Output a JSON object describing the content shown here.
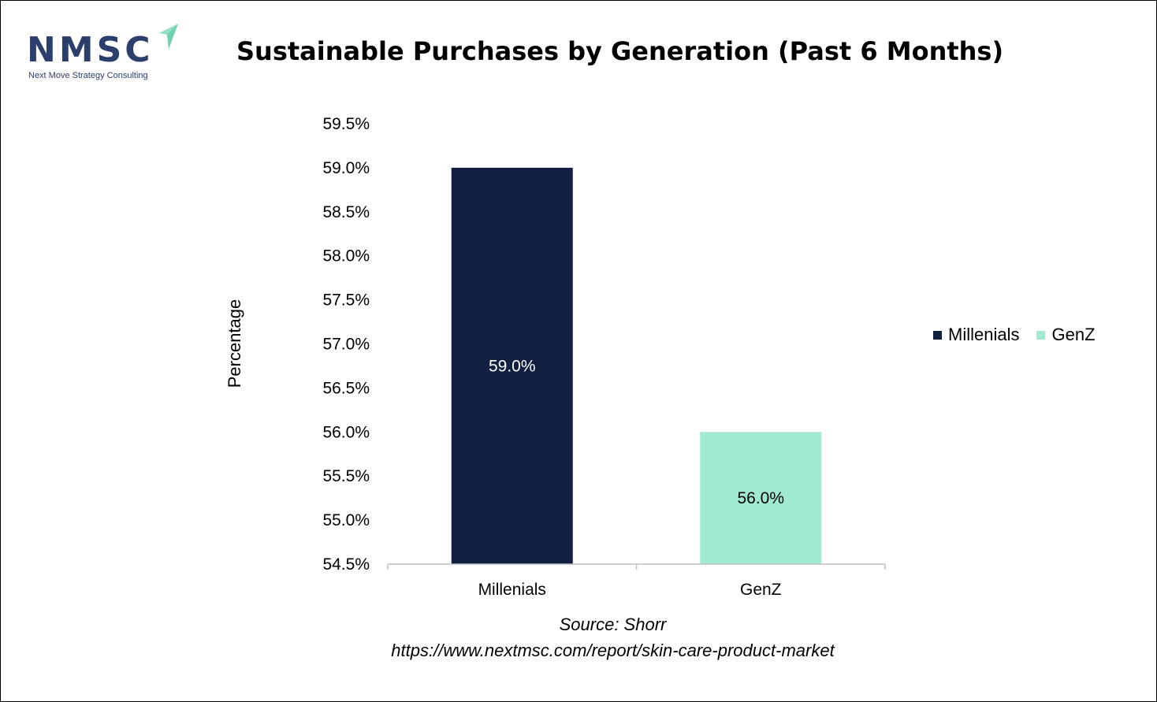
{
  "logo": {
    "name": "NMSC",
    "tagline": "Next Move Strategy Consulting"
  },
  "colors": {
    "millenials": "#111f40",
    "genz": "#a0ead2",
    "axis": "#bfbfbf",
    "logo_arrow": "#8fe0c4"
  },
  "source": {
    "line1": "Source: Shorr",
    "line2": "https://www.nextmsc.com/report/skin-care-product-market"
  },
  "chart_data": {
    "type": "bar",
    "title": "Sustainable Purchases by Generation (Past 6 Months)",
    "xlabel": "",
    "ylabel": "Percentage",
    "categories": [
      "Millenials",
      "GenZ"
    ],
    "values": [
      59.0,
      56.0
    ],
    "value_labels": [
      "59.0%",
      "56.0%"
    ],
    "ylim": [
      54.5,
      59.5
    ],
    "yticks": [
      54.5,
      55.0,
      55.5,
      56.0,
      56.5,
      57.0,
      57.5,
      58.0,
      58.5,
      59.0,
      59.5
    ],
    "ytick_labels": [
      "54.5%",
      "55.0%",
      "55.5%",
      "56.0%",
      "56.5%",
      "57.0%",
      "57.5%",
      "58.0%",
      "58.5%",
      "59.0%",
      "59.5%"
    ],
    "legend": [
      "Millenials",
      "GenZ"
    ],
    "legend_position": "right",
    "grid": false
  }
}
